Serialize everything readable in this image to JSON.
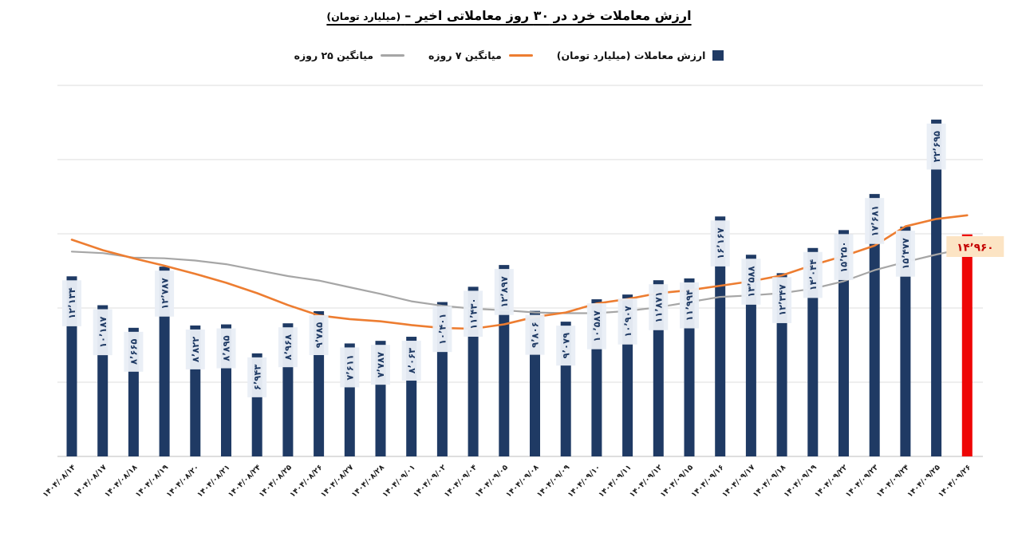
{
  "title": {
    "main": "ارزش معاملات خرد در ۳۰ روز معاملاتی اخیر –",
    "unit": "(میلیارد تومان)"
  },
  "legend": [
    {
      "label": "ارزش معاملات (میلیارد تومان)",
      "marker": "square",
      "color": "#1f3a64"
    },
    {
      "label": "میانگین ۷ روزه",
      "marker": "line",
      "color": "#ed7d31"
    },
    {
      "label": "میانگین ۲۵ روزه",
      "marker": "line",
      "color": "#a6a6a6"
    }
  ],
  "chart_data": {
    "type": "bar",
    "title": "ارزش معاملات خرد در ۳۰ روز معاملاتی اخیر – (میلیارد تومان)",
    "ylabel": "",
    "xlabel": "",
    "ylim": [
      0,
      25000
    ],
    "grid": true,
    "grid_interval": 5000,
    "legend_position": "top",
    "categories": [
      "۱۴۰۴/۰۸/۱۴",
      "۱۴۰۴/۰۸/۱۷",
      "۱۴۰۴/۰۸/۱۸",
      "۱۴۰۴/۰۸/۱۹",
      "۱۴۰۴/۰۸/۲۰",
      "۱۴۰۴/۰۸/۲۱",
      "۱۴۰۴/۰۸/۲۴",
      "۱۴۰۴/۰۸/۲۵",
      "۱۴۰۴/۰۸/۲۶",
      "۱۴۰۴/۰۸/۲۷",
      "۱۴۰۴/۰۸/۲۸",
      "۱۴۰۴/۰۹/۰۱",
      "۱۴۰۴/۰۹/۰۲",
      "۱۴۰۴/۰۹/۰۴",
      "۱۴۰۴/۰۹/۰۵",
      "۱۴۰۴/۰۹/۰۸",
      "۱۴۰۴/۰۹/۰۹",
      "۱۴۰۴/۰۹/۱۰",
      "۱۴۰۴/۰۹/۱۱",
      "۱۴۰۴/۰۹/۱۲",
      "۱۴۰۴/۰۹/۱۵",
      "۱۴۰۴/۰۹/۱۶",
      "۱۴۰۴/۰۹/۱۷",
      "۱۴۰۴/۰۹/۱۸",
      "۱۴۰۴/۰۹/۱۹",
      "۱۴۰۴/۰۹/۲۲",
      "۱۴۰۴/۰۹/۲۳",
      "۱۴۰۴/۰۹/۲۴",
      "۱۴۰۴/۰۹/۲۵",
      "۱۴۰۴/۰۹/۲۶"
    ],
    "series": [
      {
        "name": "ارزش معاملات (میلیارد تومان)",
        "type": "bar",
        "color": "#1f3a64",
        "values": [
          12134,
          10187,
          8665,
          12787,
          8822,
          8895,
          6943,
          8968,
          9785,
          7611,
          7787,
          8063,
          10401,
          11430,
          12897,
          9806,
          9079,
          10587,
          10907,
          11871,
          11994,
          16167,
          13588,
          12347,
          14044,
          15250,
          17681,
          15477,
          22695,
          14960
        ],
        "labels": [
          "۱۲٬۱۳۴",
          "۱۰٬۱۸۷",
          "۸٬۶۶۵",
          "۱۲٬۷۸۷",
          "۸٬۸۲۲",
          "۸٬۸۹۵",
          "۶٬۹۴۳",
          "۸٬۹۶۸",
          "۹٬۷۸۵",
          "۷٬۶۱۱",
          "۷٬۷۸۷",
          "۸٬۰۶۳",
          "۱۰٬۴۰۱",
          "۱۱٬۴۳۰",
          "۱۲٬۸۹۷",
          "۹٬۸۰۶",
          "۹٬۰۷۹",
          "۱۰٬۵۸۷",
          "۱۰٬۹۰۷",
          "۱۱٬۸۷۱",
          "۱۱٬۹۹۴",
          "۱۶٬۱۶۷",
          "۱۳٬۵۸۸",
          "۱۲٬۳۴۷",
          "۱۴٬۰۴۴",
          "۱۵٬۲۵۰",
          "۱۷٬۶۸۱",
          "۱۵٬۴۷۷",
          "۲۲٬۶۹۵",
          "۱۴٬۹۶۰"
        ]
      },
      {
        "name": "میانگین ۷ روزه",
        "type": "line",
        "color": "#ed7d31",
        "values": [
          14600,
          13900,
          13350,
          12850,
          12300,
          11700,
          11000,
          10200,
          9500,
          9250,
          9100,
          8850,
          8650,
          8600,
          8900,
          9400,
          9700,
          10300,
          10600,
          11000,
          11200,
          11500,
          11800,
          12200,
          12900,
          13500,
          14200,
          15500,
          16000,
          16250
        ]
      },
      {
        "name": "میانگین ۲۵ روزه",
        "type": "line",
        "color": "#a6a6a6",
        "values": [
          13800,
          13700,
          13400,
          13350,
          13200,
          12950,
          12550,
          12150,
          11850,
          11400,
          10950,
          10450,
          10150,
          9950,
          9850,
          9700,
          9650,
          9650,
          9800,
          10050,
          10400,
          10750,
          10850,
          11000,
          11300,
          11800,
          12550,
          13100,
          13600,
          14050
        ]
      }
    ],
    "highlight_last": {
      "bar_color": "#ee0606",
      "label": "۱۴٬۹۶۰",
      "label_bg": "#fce4c4",
      "label_text_color": "#c40000"
    },
    "bar_label_bg": "#e9eef6",
    "bar_label_color": "#1f3a64",
    "gridline_color": "#dcdcdc",
    "axis_color": "#c9c9c9",
    "tick_label_color": "#1a1a1a"
  }
}
